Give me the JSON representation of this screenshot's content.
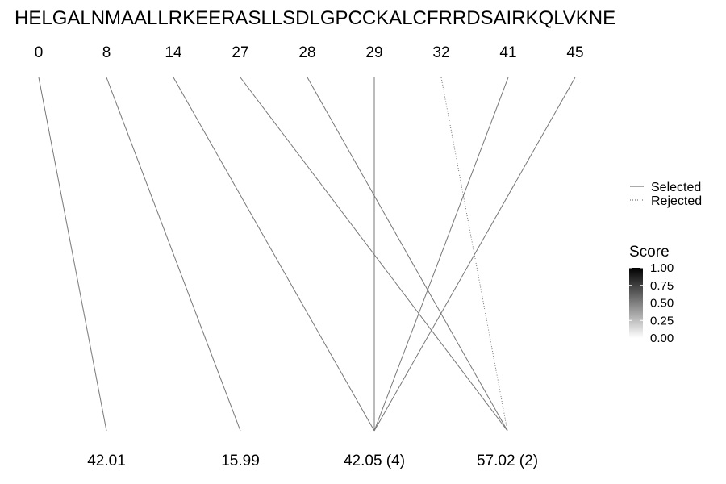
{
  "chart_data": {
    "type": "line",
    "sequence": "HELGALNMAALLRKEERASLLSDLGPCCKALCFRRDSAIRKQLVKNE",
    "top_labels": [
      "0",
      "8",
      "14",
      "27",
      "28",
      "29",
      "32",
      "41",
      "45"
    ],
    "bottom_labels": [
      "42.01",
      "15.99",
      "42.05 (4)",
      "57.02 (2)"
    ],
    "links": [
      {
        "from": 0,
        "to": 0,
        "status": "Selected",
        "score": 0.5
      },
      {
        "from": 1,
        "to": 1,
        "status": "Selected",
        "score": 0.5
      },
      {
        "from": 2,
        "to": 2,
        "status": "Selected",
        "score": 0.5
      },
      {
        "from": 3,
        "to": 3,
        "status": "Selected",
        "score": 0.5
      },
      {
        "from": 4,
        "to": 3,
        "status": "Selected",
        "score": 0.5
      },
      {
        "from": 5,
        "to": 2,
        "status": "Selected",
        "score": 0.5
      },
      {
        "from": 6,
        "to": 3,
        "status": "Rejected",
        "score": 0.5
      },
      {
        "from": 7,
        "to": 2,
        "status": "Selected",
        "score": 0.5
      },
      {
        "from": 8,
        "to": 2,
        "status": "Selected",
        "score": 0.5
      }
    ],
    "legend": {
      "position": "right",
      "line_types": [
        "Selected",
        "Rejected"
      ],
      "score_title": "Score",
      "score_ticks": [
        "1.00",
        "0.75",
        "0.50",
        "0.25",
        "0.00"
      ],
      "score_range": [
        0,
        1
      ]
    },
    "colors": {
      "link": "#777777",
      "score_high": "#000000",
      "score_low": "#ffffff"
    }
  }
}
